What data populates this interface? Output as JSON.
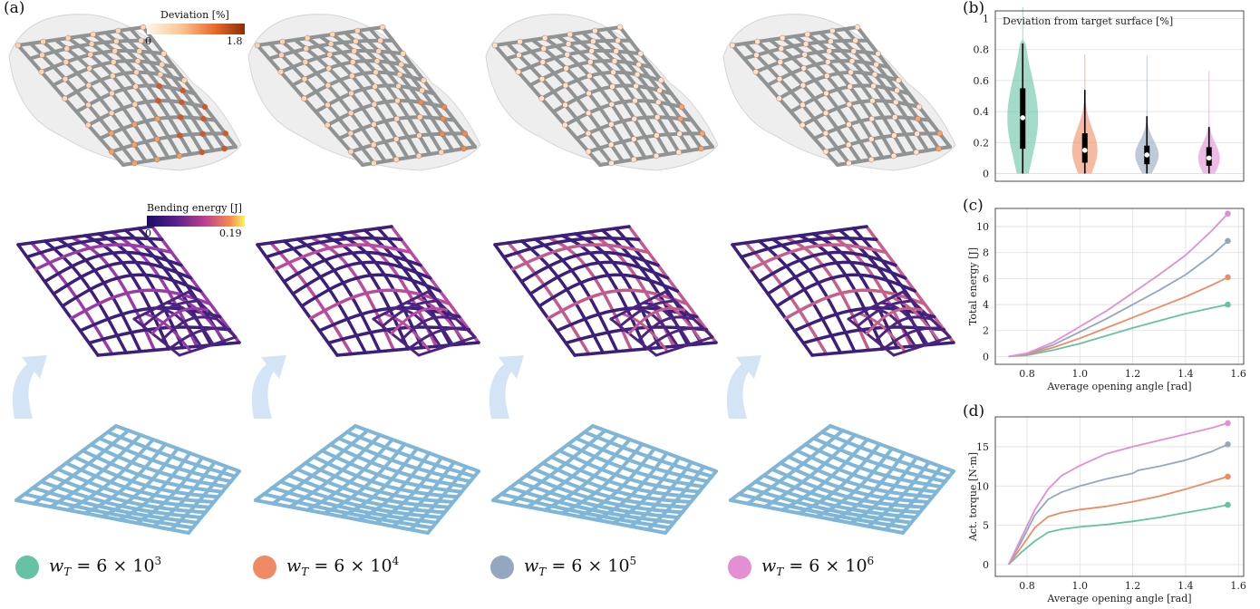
{
  "panel_labels": {
    "a": "(a)",
    "b": "(b)",
    "c": "(c)",
    "d": "(d)"
  },
  "colorbars": {
    "deviation": {
      "title": "Deviation [%]",
      "min": "0",
      "max": "1.8"
    },
    "bending": {
      "title": "Bending energy [J]",
      "min": "0",
      "max": "0.19"
    }
  },
  "colors": {
    "series": [
      "#66c2a5",
      "#f08a64",
      "#93a7c0",
      "#e48ed3"
    ],
    "shell_gray": "#b8bcbc",
    "deployed_purple": "#6a2a8c",
    "flat_blue": "#8cc2e2",
    "arrow_blue": "#d2e4f5"
  },
  "legend": [
    {
      "symbol": "w",
      "sub": "T",
      "text": " = 6 × 10",
      "exp": "3",
      "color": "#66c2a5"
    },
    {
      "symbol": "w",
      "sub": "T",
      "text": " = 6 × 10",
      "exp": "4",
      "color": "#f08a64"
    },
    {
      "symbol": "w",
      "sub": "T",
      "text": " = 6 × 10",
      "exp": "5",
      "color": "#93a7c0"
    },
    {
      "symbol": "w",
      "sub": "T",
      "text": " = 6 × 10",
      "exp": "6",
      "color": "#e48ed3"
    }
  ],
  "chart_data": [
    {
      "id": "b",
      "type": "violin",
      "title": "Deviation from target surface [%]",
      "ylim": [
        -0.05,
        1.05
      ],
      "yticks": [
        "0",
        "0.2",
        "0.4",
        "0.6",
        "0.8",
        "1"
      ],
      "grid": true,
      "series": [
        {
          "min": 0.0,
          "q1": 0.16,
          "median": 0.36,
          "q3": 0.55,
          "whisker_high": 0.84,
          "max": 1.08
        },
        {
          "min": 0.0,
          "q1": 0.07,
          "median": 0.15,
          "q3": 0.26,
          "whisker_high": 0.54,
          "max": 0.77
        },
        {
          "min": 0.0,
          "q1": 0.06,
          "median": 0.12,
          "q3": 0.18,
          "whisker_high": 0.37,
          "max": 0.76
        },
        {
          "min": 0.0,
          "q1": 0.05,
          "median": 0.1,
          "q3": 0.17,
          "whisker_high": 0.3,
          "max": 0.66
        }
      ]
    },
    {
      "id": "c",
      "type": "line",
      "xlabel": "Average opening angle [rad]",
      "ylabel": "Total energy [J]",
      "xlim": [
        0.68,
        1.62
      ],
      "ylim": [
        -0.6,
        11.4
      ],
      "xticks": [
        "0.8",
        "1.0",
        "1.2",
        "1.4",
        "1.6"
      ],
      "yticks": [
        "0",
        "2",
        "4",
        "6",
        "8",
        "10"
      ],
      "grid": true,
      "series": [
        {
          "x": [
            0.73,
            0.8,
            0.9,
            1.0,
            1.1,
            1.2,
            1.3,
            1.4,
            1.5,
            1.56
          ],
          "y": [
            0,
            0.1,
            0.5,
            1.0,
            1.6,
            2.2,
            2.75,
            3.3,
            3.75,
            4.0
          ]
        },
        {
          "x": [
            0.73,
            0.8,
            0.9,
            1.0,
            1.1,
            1.2,
            1.3,
            1.4,
            1.5,
            1.56
          ],
          "y": [
            0,
            0.15,
            0.7,
            1.4,
            2.2,
            3.0,
            3.8,
            4.6,
            5.5,
            6.1
          ]
        },
        {
          "x": [
            0.73,
            0.8,
            0.9,
            1.0,
            1.1,
            1.2,
            1.3,
            1.4,
            1.5,
            1.56
          ],
          "y": [
            0,
            0.2,
            0.9,
            1.9,
            2.9,
            4.0,
            5.1,
            6.3,
            7.8,
            8.9
          ]
        },
        {
          "x": [
            0.73,
            0.8,
            0.9,
            1.0,
            1.1,
            1.2,
            1.3,
            1.4,
            1.5,
            1.56
          ],
          "y": [
            0,
            0.25,
            1.1,
            2.3,
            3.5,
            4.9,
            6.3,
            7.8,
            9.7,
            11.0
          ]
        }
      ]
    },
    {
      "id": "d",
      "type": "line",
      "xlabel": "Average opening angle [rad]",
      "ylabel": "Act. torque [N·m]",
      "xlim": [
        0.68,
        1.62
      ],
      "ylim": [
        -1.5,
        18.8
      ],
      "xticks": [
        "0.8",
        "1.0",
        "1.2",
        "1.4",
        "1.6"
      ],
      "yticks": [
        "0",
        "5",
        "10",
        "15"
      ],
      "grid": true,
      "series": [
        {
          "x": [
            0.73,
            0.78,
            0.83,
            0.88,
            0.93,
            1.0,
            1.1,
            1.2,
            1.3,
            1.4,
            1.5,
            1.56
          ],
          "y": [
            0,
            1.6,
            3.0,
            4.1,
            4.5,
            4.8,
            5.1,
            5.5,
            6.0,
            6.6,
            7.2,
            7.6
          ]
        },
        {
          "x": [
            0.73,
            0.78,
            0.83,
            0.88,
            0.93,
            1.0,
            1.1,
            1.2,
            1.3,
            1.4,
            1.5,
            1.56
          ],
          "y": [
            0,
            2.3,
            4.7,
            6.1,
            6.6,
            7.0,
            7.4,
            8.0,
            8.7,
            9.6,
            10.6,
            11.2
          ]
        },
        {
          "x": [
            0.73,
            0.78,
            0.83,
            0.88,
            0.93,
            1.0,
            1.1,
            1.2,
            1.22,
            1.3,
            1.4,
            1.5,
            1.56
          ],
          "y": [
            0,
            3.0,
            6.3,
            8.3,
            9.2,
            10.0,
            10.9,
            11.6,
            12.0,
            12.5,
            13.3,
            14.4,
            15.3
          ]
        },
        {
          "x": [
            0.73,
            0.78,
            0.83,
            0.88,
            0.93,
            1.0,
            1.1,
            1.2,
            1.3,
            1.4,
            1.5,
            1.56
          ],
          "y": [
            0,
            3.5,
            7.0,
            9.6,
            11.3,
            12.6,
            14.1,
            15.0,
            15.8,
            16.6,
            17.4,
            18.0
          ]
        }
      ]
    }
  ]
}
